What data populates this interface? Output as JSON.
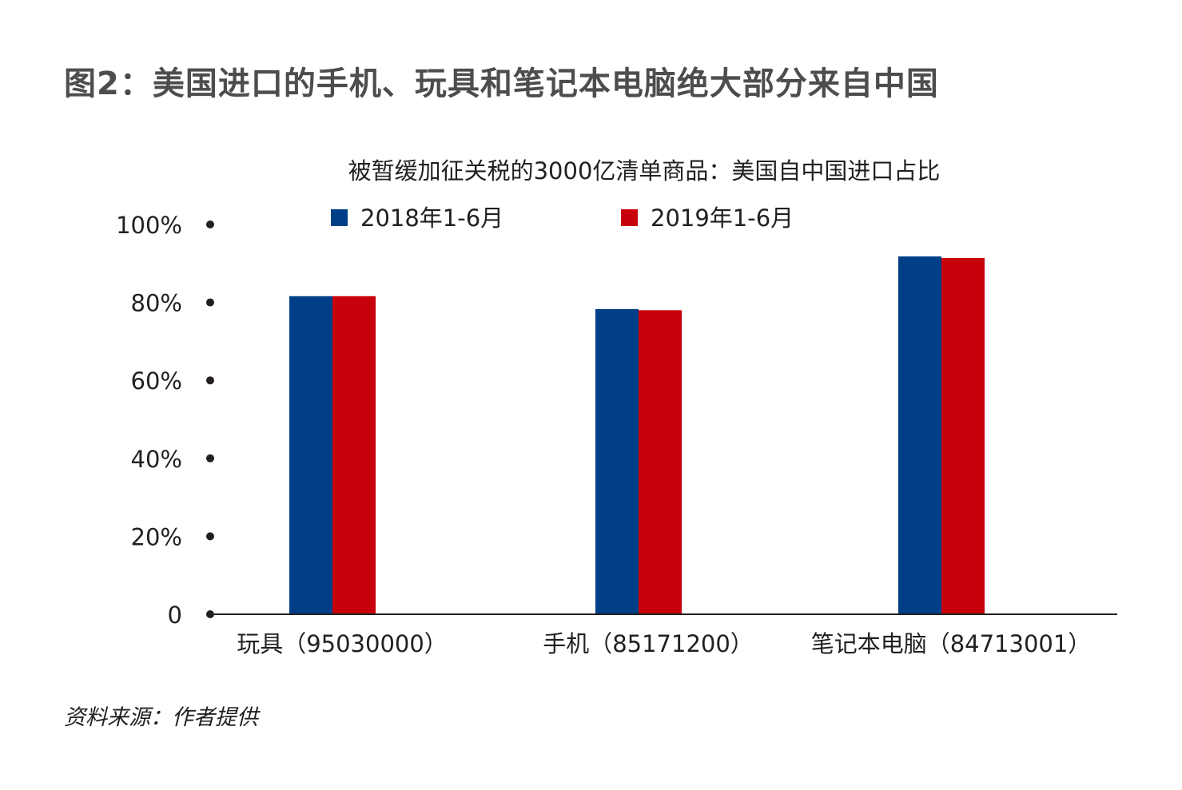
{
  "figure_title": "图2：美国进口的手机、玩具和笔记本电脑绝大部分来自中国",
  "source": "资料来源：作者提供",
  "chart_data": {
    "type": "bar",
    "title": "被暂缓加征关税的3000亿清单商品：美国自中国进口占比",
    "categories": [
      "玩具（95030000）",
      "手机（85171200）",
      "笔记本电脑（84713001）"
    ],
    "series": [
      {
        "name": "2018年1-6月",
        "color": "#003f87",
        "values": [
          81.6,
          78.3,
          91.8
        ]
      },
      {
        "name": "2019年1-6月",
        "color": "#c8000b",
        "values": [
          81.6,
          78.0,
          91.4
        ]
      }
    ],
    "y_ticks": [
      "0",
      "20%",
      "40%",
      "60%",
      "80%",
      "100%"
    ],
    "ylim": [
      0,
      100
    ],
    "xlabel": "",
    "ylabel": "",
    "legend_position": "top",
    "grid": false
  }
}
